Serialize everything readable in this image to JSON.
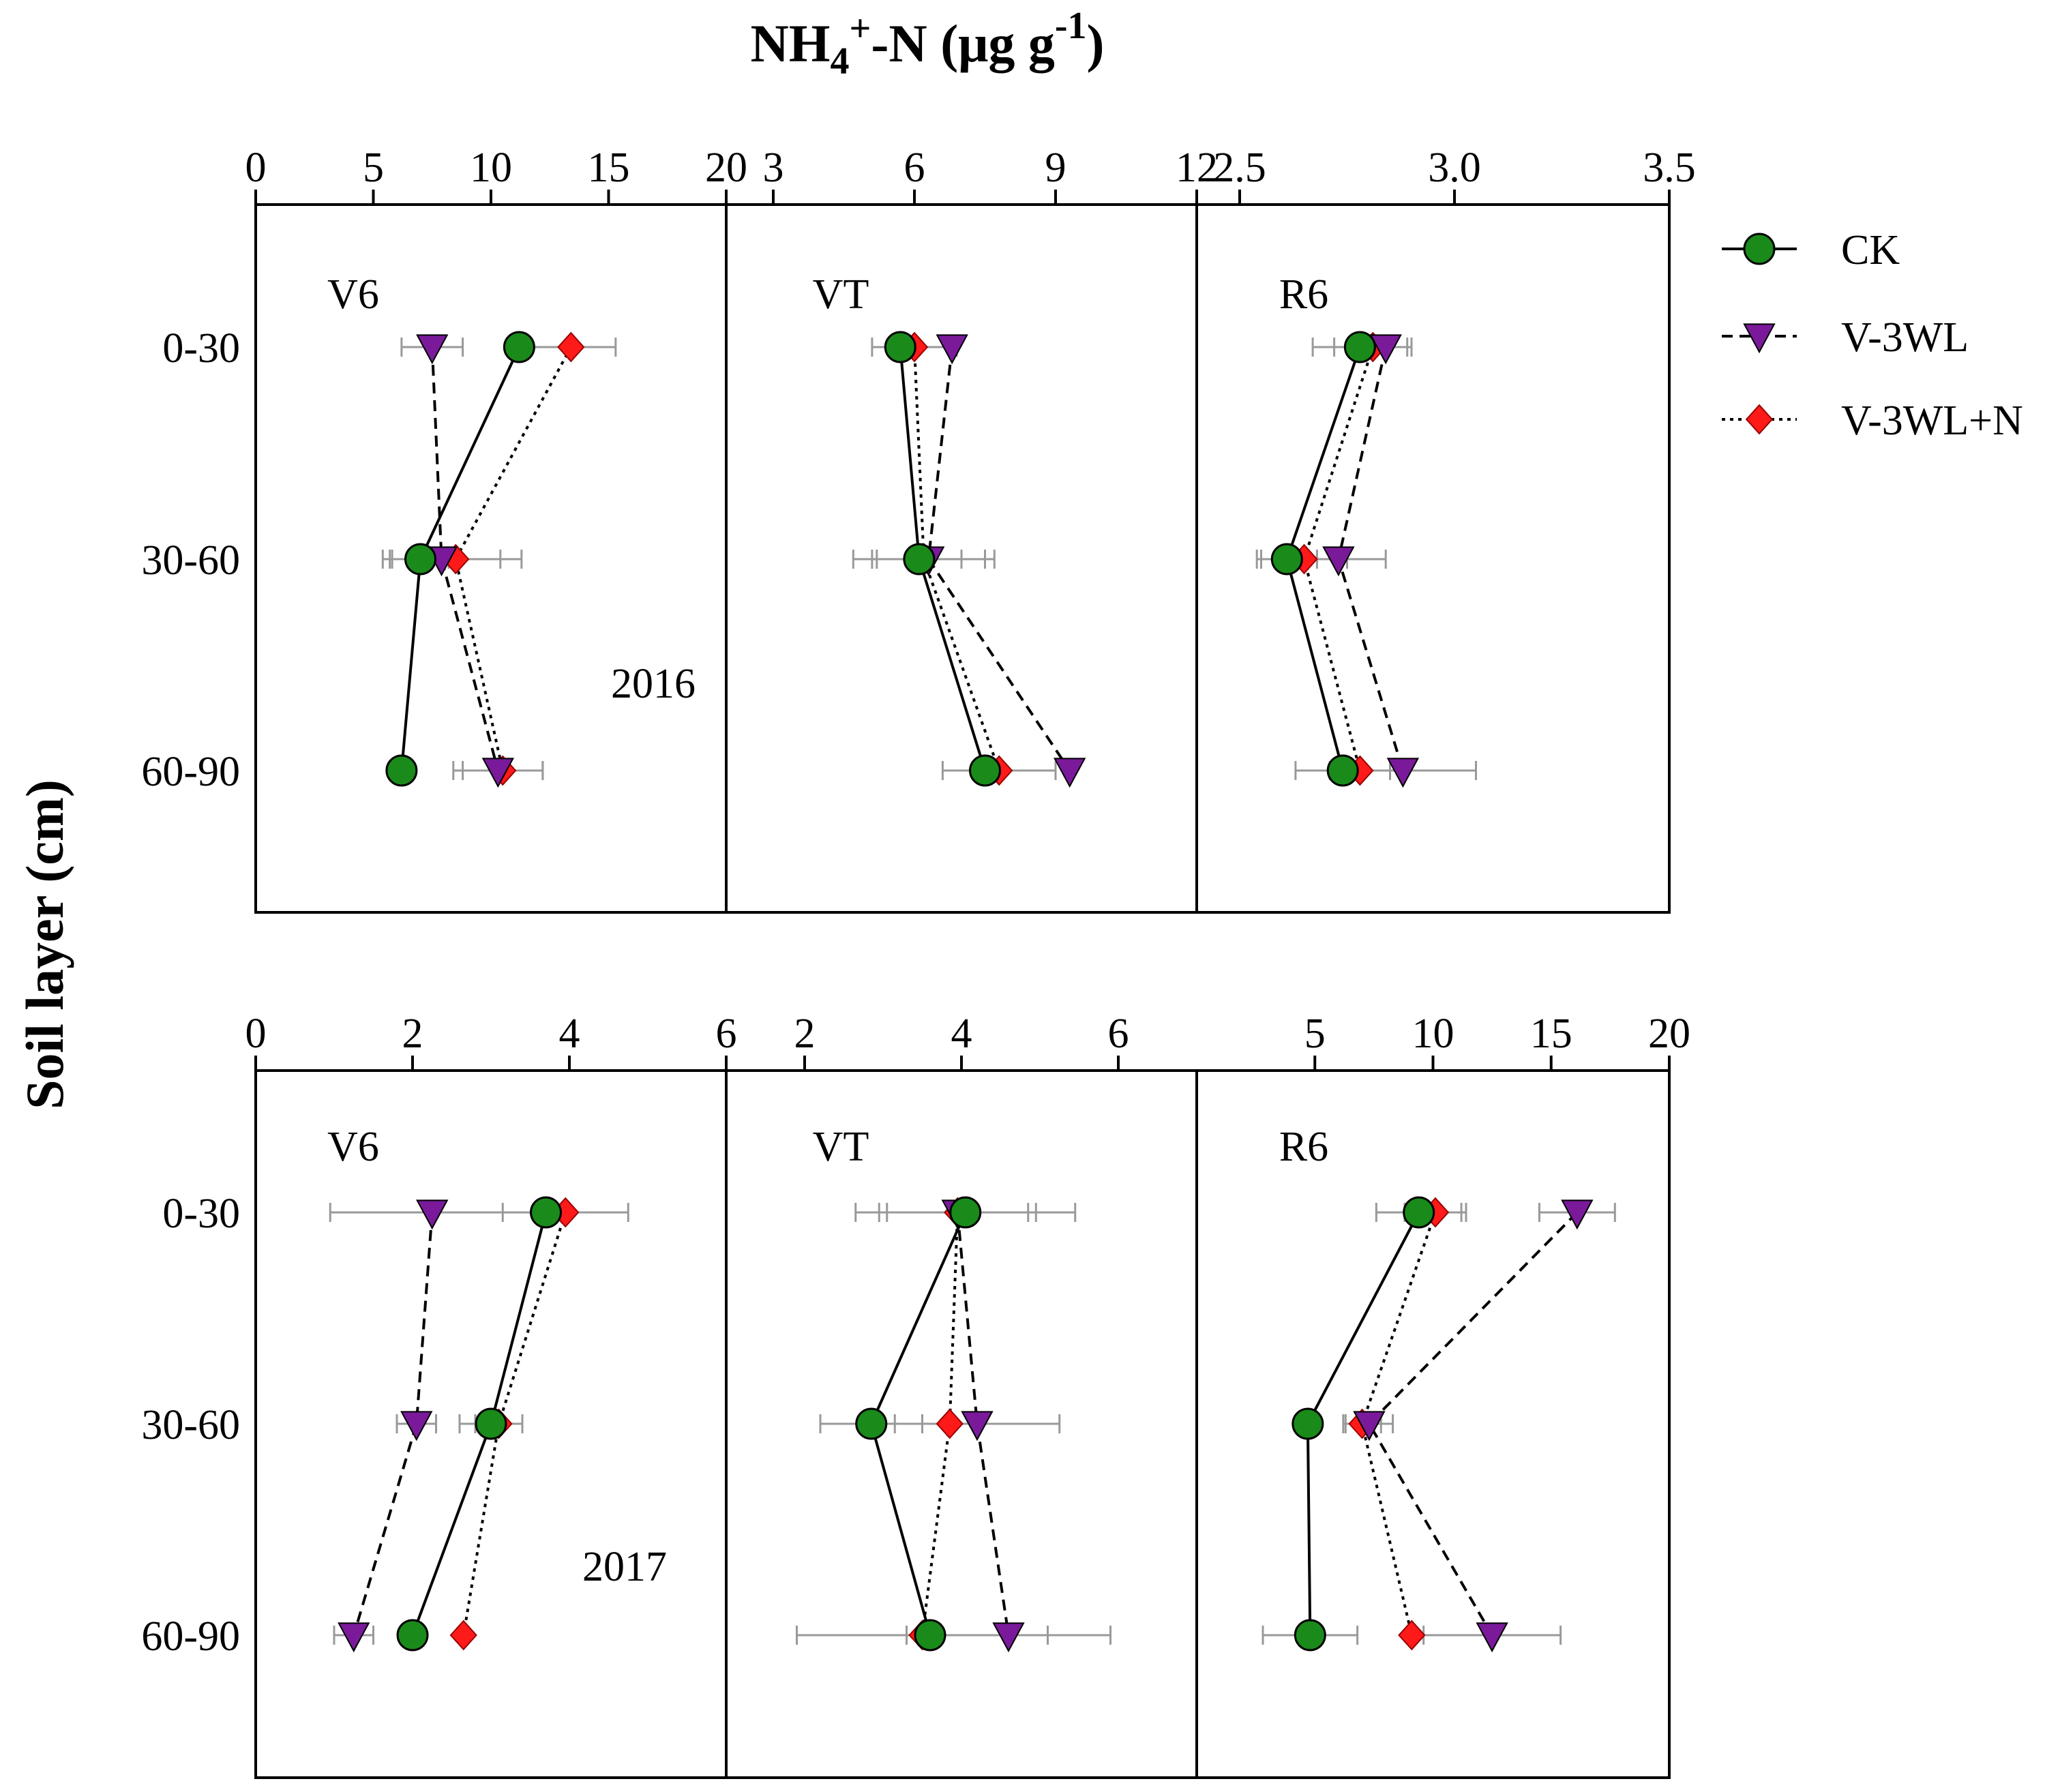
{
  "chart_data": {
    "type": "line",
    "title_main": "NH",
    "title_sub": "4",
    "title_sup": "+",
    "title_rest": "-N (μg g",
    "title_sup2": "-1",
    "title_close": ")",
    "ylabel": "Soil layer (cm)",
    "depth_layers": [
      "0-30",
      "30-60",
      "60-90"
    ],
    "legend": [
      {
        "name": "CK",
        "color": "#1a8a1a",
        "marker": "circle",
        "line": "solid"
      },
      {
        "name": "V-3WL",
        "color": "#7a1a9a",
        "marker": "triangle-down",
        "line": "dashed"
      },
      {
        "name": "V-3WL+N",
        "color": "#ff1a1a",
        "marker": "diamond",
        "line": "dotted"
      }
    ],
    "panels": [
      {
        "year": "2016",
        "stage": "V6",
        "xlim": [
          0,
          20
        ],
        "ticks": [
          0,
          5,
          10,
          15,
          20
        ],
        "tick_labels": [
          "0",
          "5",
          "10",
          "15",
          "20"
        ],
        "series": [
          {
            "name": "CK",
            "values": [
              11.2,
              7.0,
              6.2
            ],
            "err": [
              0.0,
              1.2,
              0.0
            ]
          },
          {
            "name": "V-3WL",
            "values": [
              7.5,
              7.9,
              10.3
            ],
            "err": [
              1.3,
              2.5,
              1.9
            ]
          },
          {
            "name": "V-3WL+N",
            "values": [
              13.4,
              8.5,
              10.5
            ],
            "err": [
              1.9,
              2.8,
              1.7
            ]
          }
        ]
      },
      {
        "year": "2016",
        "stage": "VT",
        "xlim": [
          2,
          12
        ],
        "ticks": [
          3,
          6,
          9,
          12
        ],
        "tick_labels": [
          "3",
          "6",
          "9",
          "12"
        ],
        "series": [
          {
            "name": "CK",
            "values": [
              5.7,
              6.1,
              7.5
            ],
            "err": [
              0.0,
              0.9,
              0.0
            ]
          },
          {
            "name": "V-3WL",
            "values": [
              6.8,
              6.3,
              9.3
            ],
            "err": [
              0.0,
              1.2,
              0.0
            ]
          },
          {
            "name": "V-3WL+N",
            "values": [
              6.0,
              6.2,
              7.8
            ],
            "err": [
              0.9,
              1.5,
              1.2
            ]
          }
        ]
      },
      {
        "year": "2016",
        "stage": "R6",
        "xlim": [
          2.4,
          3.5
        ],
        "ticks": [
          2.5,
          3.0,
          3.5
        ],
        "tick_labels": [
          "2.5",
          "3.0",
          "3.5"
        ],
        "series": [
          {
            "name": "CK",
            "values": [
              2.78,
              2.61,
              2.74
            ],
            "err": [
              0.11,
              0.07,
              0.11
            ]
          },
          {
            "name": "V-3WL",
            "values": [
              2.84,
              2.73,
              2.88
            ],
            "err": [
              0.06,
              0.11,
              0.17
            ]
          },
          {
            "name": "V-3WL+N",
            "values": [
              2.81,
              2.65,
              2.78
            ],
            "err": [
              0.09,
              0.1,
              0.07
            ]
          }
        ]
      },
      {
        "year": "2017",
        "stage": "V6",
        "xlim": [
          0,
          6
        ],
        "ticks": [
          0,
          2,
          4,
          6
        ],
        "tick_labels": [
          "0",
          "2",
          "4",
          "6"
        ],
        "series": [
          {
            "name": "CK",
            "values": [
              3.7,
              3.0,
              2.0
            ],
            "err": [
              0.0,
              0.4,
              0.0
            ]
          },
          {
            "name": "V-3WL",
            "values": [
              2.25,
              2.05,
              1.25
            ],
            "err": [
              1.3,
              0.25,
              0.25
            ]
          },
          {
            "name": "V-3WL+N",
            "values": [
              3.95,
              3.1,
              2.65
            ],
            "err": [
              0.8,
              0.3,
              0.0
            ]
          }
        ]
      },
      {
        "year": "2017",
        "stage": "VT",
        "xlim": [
          1,
          7
        ],
        "ticks": [
          2,
          4,
          6
        ],
        "tick_labels": [
          "2",
          "4",
          "6"
        ],
        "series": [
          {
            "name": "CK",
            "values": [
              4.05,
              2.85,
              3.6
            ],
            "err": [
              1.4,
              0.65,
              0.0
            ]
          },
          {
            "name": "V-3WL",
            "values": [
              3.95,
              4.2,
              4.6
            ],
            "err": [
              0.9,
              1.05,
              1.3
            ]
          },
          {
            "name": "V-3WL+N",
            "values": [
              3.95,
              3.85,
              3.5
            ],
            "err": [
              1.0,
              0.0,
              1.6
            ]
          }
        ]
      },
      {
        "year": "2017",
        "stage": "R6",
        "xlim": [
          0,
          20
        ],
        "ticks": [
          5,
          10,
          15,
          20
        ],
        "tick_labels": [
          "5",
          "10",
          "15",
          "20"
        ],
        "series": [
          {
            "name": "CK",
            "values": [
              9.4,
              4.7,
              4.8
            ],
            "err": [
              1.8,
              0.0,
              2.0
            ]
          },
          {
            "name": "V-3WL",
            "values": [
              16.1,
              7.3,
              12.5
            ],
            "err": [
              1.6,
              1.0,
              2.9
            ]
          },
          {
            "name": "V-3WL+N",
            "values": [
              10.1,
              7.0,
              9.1
            ],
            "err": [
              1.3,
              0.8,
              0.0
            ]
          }
        ]
      }
    ]
  }
}
